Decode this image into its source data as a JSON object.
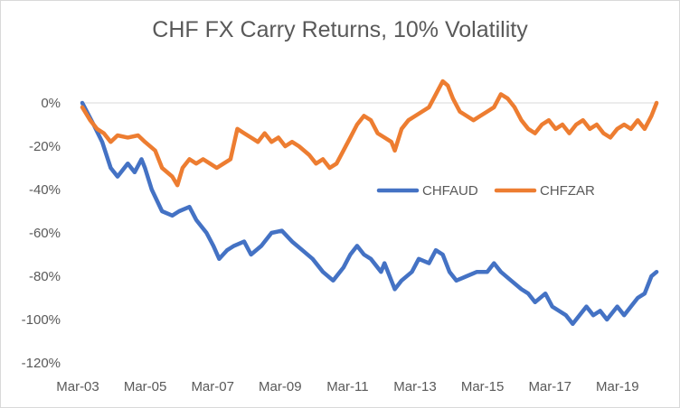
{
  "chart_data": {
    "type": "line",
    "title": "CHF FX Carry Returns, 10% Volatility",
    "xlabel": "",
    "ylabel": "",
    "x_tick_labels": [
      "Mar-03",
      "Mar-05",
      "Mar-07",
      "Mar-09",
      "Mar-11",
      "Mar-13",
      "Mar-15",
      "Mar-17",
      "Mar-19"
    ],
    "x_range": [
      2003.17,
      2020.0
    ],
    "y_tick_labels": [
      "0%",
      "-20%",
      "-40%",
      "-60%",
      "-80%",
      "-100%",
      "-120%"
    ],
    "y_ticks": [
      0,
      -20,
      -40,
      -60,
      -80,
      -100,
      -120
    ],
    "ylim": [
      -120,
      0
    ],
    "legend_position": "center-right",
    "grid": false,
    "series": [
      {
        "name": "CHFAUD",
        "color": "#4472c4",
        "points": [
          [
            2003.17,
            0
          ],
          [
            2003.5,
            -10
          ],
          [
            2003.75,
            -18
          ],
          [
            2004.0,
            -30
          ],
          [
            2004.2,
            -34
          ],
          [
            2004.5,
            -28
          ],
          [
            2004.7,
            -32
          ],
          [
            2004.9,
            -26
          ],
          [
            2005.0,
            -30
          ],
          [
            2005.2,
            -40
          ],
          [
            2005.5,
            -50
          ],
          [
            2005.8,
            -52
          ],
          [
            2006.0,
            -50
          ],
          [
            2006.3,
            -48
          ],
          [
            2006.5,
            -54
          ],
          [
            2006.8,
            -60
          ],
          [
            2007.0,
            -66
          ],
          [
            2007.17,
            -72
          ],
          [
            2007.4,
            -68
          ],
          [
            2007.6,
            -66
          ],
          [
            2007.9,
            -64
          ],
          [
            2008.1,
            -70
          ],
          [
            2008.4,
            -66
          ],
          [
            2008.7,
            -60
          ],
          [
            2009.0,
            -59
          ],
          [
            2009.3,
            -64
          ],
          [
            2009.6,
            -68
          ],
          [
            2009.9,
            -72
          ],
          [
            2010.2,
            -78
          ],
          [
            2010.5,
            -82
          ],
          [
            2010.8,
            -76
          ],
          [
            2011.0,
            -70
          ],
          [
            2011.2,
            -66
          ],
          [
            2011.4,
            -70
          ],
          [
            2011.6,
            -72
          ],
          [
            2011.9,
            -78
          ],
          [
            2012.0,
            -74
          ],
          [
            2012.3,
            -86
          ],
          [
            2012.5,
            -82
          ],
          [
            2012.8,
            -78
          ],
          [
            2013.0,
            -72
          ],
          [
            2013.3,
            -74
          ],
          [
            2013.5,
            -68
          ],
          [
            2013.7,
            -70
          ],
          [
            2013.9,
            -78
          ],
          [
            2014.1,
            -82
          ],
          [
            2014.4,
            -80
          ],
          [
            2014.7,
            -78
          ],
          [
            2015.0,
            -78
          ],
          [
            2015.2,
            -74
          ],
          [
            2015.4,
            -78
          ],
          [
            2015.7,
            -82
          ],
          [
            2016.0,
            -86
          ],
          [
            2016.2,
            -88
          ],
          [
            2016.4,
            -92
          ],
          [
            2016.7,
            -88
          ],
          [
            2016.9,
            -94
          ],
          [
            2017.1,
            -96
          ],
          [
            2017.3,
            -98
          ],
          [
            2017.5,
            -102
          ],
          [
            2017.7,
            -98
          ],
          [
            2017.9,
            -94
          ],
          [
            2018.1,
            -98
          ],
          [
            2018.3,
            -96
          ],
          [
            2018.5,
            -100
          ],
          [
            2018.8,
            -94
          ],
          [
            2019.0,
            -98
          ],
          [
            2019.2,
            -94
          ],
          [
            2019.4,
            -90
          ],
          [
            2019.6,
            -88
          ],
          [
            2019.8,
            -80
          ],
          [
            2019.95,
            -78
          ]
        ]
      },
      {
        "name": "CHFZAR",
        "color": "#ed7d31",
        "points": [
          [
            2003.17,
            -2
          ],
          [
            2003.4,
            -8
          ],
          [
            2003.6,
            -12
          ],
          [
            2003.8,
            -14
          ],
          [
            2004.0,
            -18
          ],
          [
            2004.2,
            -15
          ],
          [
            2004.5,
            -16
          ],
          [
            2004.8,
            -15
          ],
          [
            2005.0,
            -18
          ],
          [
            2005.3,
            -22
          ],
          [
            2005.5,
            -30
          ],
          [
            2005.8,
            -34
          ],
          [
            2005.95,
            -38
          ],
          [
            2006.1,
            -30
          ],
          [
            2006.3,
            -26
          ],
          [
            2006.5,
            -28
          ],
          [
            2006.7,
            -26
          ],
          [
            2006.9,
            -28
          ],
          [
            2007.1,
            -30
          ],
          [
            2007.3,
            -28
          ],
          [
            2007.5,
            -26
          ],
          [
            2007.7,
            -12
          ],
          [
            2007.9,
            -14
          ],
          [
            2008.1,
            -16
          ],
          [
            2008.3,
            -18
          ],
          [
            2008.5,
            -14
          ],
          [
            2008.7,
            -18
          ],
          [
            2008.9,
            -16
          ],
          [
            2009.1,
            -20
          ],
          [
            2009.3,
            -18
          ],
          [
            2009.5,
            -20
          ],
          [
            2009.8,
            -24
          ],
          [
            2010.0,
            -28
          ],
          [
            2010.2,
            -26
          ],
          [
            2010.4,
            -30
          ],
          [
            2010.6,
            -28
          ],
          [
            2010.8,
            -22
          ],
          [
            2011.0,
            -16
          ],
          [
            2011.2,
            -10
          ],
          [
            2011.4,
            -6
          ],
          [
            2011.6,
            -8
          ],
          [
            2011.8,
            -14
          ],
          [
            2012.0,
            -16
          ],
          [
            2012.2,
            -18
          ],
          [
            2012.3,
            -22
          ],
          [
            2012.5,
            -12
          ],
          [
            2012.7,
            -8
          ],
          [
            2012.9,
            -6
          ],
          [
            2013.1,
            -4
          ],
          [
            2013.3,
            -2
          ],
          [
            2013.5,
            4
          ],
          [
            2013.7,
            10
          ],
          [
            2013.85,
            8
          ],
          [
            2014.0,
            2
          ],
          [
            2014.2,
            -4
          ],
          [
            2014.4,
            -6
          ],
          [
            2014.6,
            -8
          ],
          [
            2014.8,
            -6
          ],
          [
            2015.0,
            -4
          ],
          [
            2015.2,
            -2
          ],
          [
            2015.4,
            4
          ],
          [
            2015.6,
            2
          ],
          [
            2015.8,
            -2
          ],
          [
            2016.0,
            -8
          ],
          [
            2016.2,
            -12
          ],
          [
            2016.4,
            -14
          ],
          [
            2016.6,
            -10
          ],
          [
            2016.8,
            -8
          ],
          [
            2017.0,
            -12
          ],
          [
            2017.2,
            -10
          ],
          [
            2017.4,
            -14
          ],
          [
            2017.6,
            -10
          ],
          [
            2017.8,
            -8
          ],
          [
            2018.0,
            -12
          ],
          [
            2018.2,
            -10
          ],
          [
            2018.4,
            -14
          ],
          [
            2018.6,
            -16
          ],
          [
            2018.8,
            -12
          ],
          [
            2019.0,
            -10
          ],
          [
            2019.2,
            -12
          ],
          [
            2019.4,
            -8
          ],
          [
            2019.6,
            -12
          ],
          [
            2019.8,
            -6
          ],
          [
            2019.95,
            0
          ]
        ]
      }
    ]
  }
}
